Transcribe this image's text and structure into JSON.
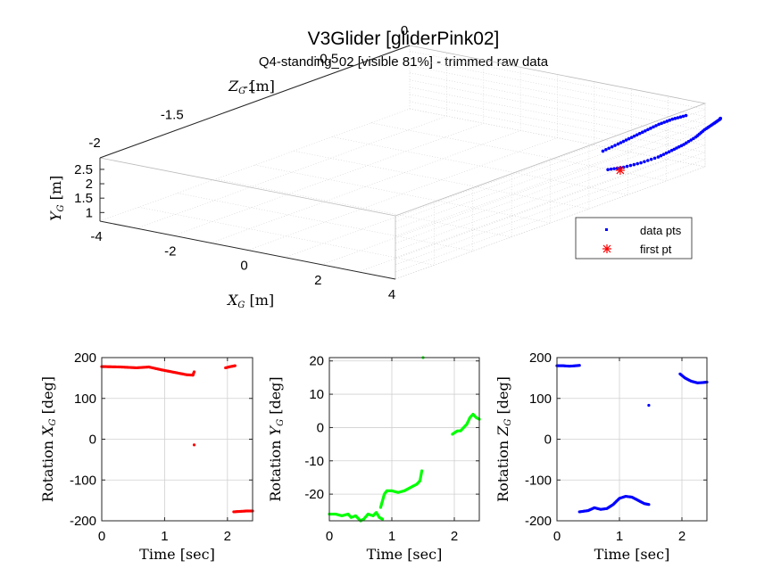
{
  "figure": {
    "title": "V3Glider [gliderPink02]",
    "subtitle": "Q4-standing_02 [visible 81%] - trimmed raw data"
  },
  "colors": {
    "red": "#ff0000",
    "green": "#00ff00",
    "blue": "#0000ff",
    "axis": "#262626",
    "grid": "#d0d0d0"
  },
  "chart_data": [
    {
      "type": "scatter",
      "projection": "3d",
      "labels": {
        "x": "X",
        "x_sub": "G",
        "x_unit": "[m]",
        "y": "Y",
        "y_sub": "G",
        "y_unit": "[m]",
        "z": "Z",
        "z_sub": "G",
        "z_unit": "[m]"
      },
      "xlim": [
        -4,
        4
      ],
      "ylim": [
        0.7,
        2.9
      ],
      "zlim": [
        -2,
        0
      ],
      "xticks": [
        -4,
        -2,
        0,
        2,
        4
      ],
      "yticks": [
        1,
        1.5,
        2,
        2.5
      ],
      "zticks": [
        -2,
        -1.5,
        -1,
        -0.5,
        0
      ],
      "grid": true,
      "legend": {
        "position": "right",
        "entries": [
          "data pts",
          "first pt"
        ]
      },
      "series": [
        {
          "name": "data pts",
          "color": "#0000ff",
          "marker": "dot",
          "points": [
            [
              2.5,
              0.75,
              -0.27
            ],
            [
              2.8,
              0.85,
              -0.24
            ],
            [
              3.1,
              1.0,
              -0.2
            ],
            [
              3.4,
              1.2,
              -0.16
            ],
            [
              3.6,
              1.4,
              -0.12
            ],
            [
              3.8,
              1.6,
              -0.09
            ],
            [
              4.0,
              1.85,
              -0.06
            ],
            [
              4.15,
              2.1,
              -0.04
            ],
            [
              4.3,
              2.3,
              -0.02
            ],
            [
              4.4,
              2.45,
              0.0
            ],
            [
              4.5,
              2.55,
              -0.02
            ],
            [
              2.7,
              1.6,
              -0.35
            ],
            [
              2.9,
              1.8,
              -0.3
            ],
            [
              3.1,
              2.0,
              -0.26
            ],
            [
              3.3,
              2.2,
              -0.22
            ],
            [
              3.5,
              2.4,
              -0.18
            ],
            [
              3.7,
              2.55,
              -0.14
            ],
            [
              3.9,
              2.65,
              -0.1
            ]
          ]
        },
        {
          "name": "first pt",
          "color": "#ff0000",
          "marker": "asterisk",
          "points": [
            [
              2.75,
              0.75,
              -0.25
            ]
          ]
        }
      ]
    },
    {
      "type": "scatter",
      "color": "#ff0000",
      "xlabel": "Time [sec]",
      "ylabel_prefix": "Rotation",
      "ylabel_var": "X",
      "ylabel_sub": "G",
      "ylabel_unit": "[deg]",
      "xlim": [
        0,
        2.4
      ],
      "ylim": [
        -200,
        200
      ],
      "xticks": [
        0,
        1,
        2
      ],
      "yticks": [
        -200,
        -100,
        0,
        100,
        200
      ],
      "grid": true,
      "segments": [
        {
          "x": [
            0,
            0.3,
            0.55,
            0.75,
            0.95,
            1.15,
            1.35,
            1.45
          ],
          "y": [
            178,
            177,
            175,
            177,
            170,
            164,
            158,
            157
          ]
        },
        {
          "x": [
            1.45,
            1.47
          ],
          "y": [
            157,
            165
          ]
        },
        {
          "x": [
            1.47
          ],
          "y": [
            -14
          ]
        },
        {
          "x": [
            1.97,
            2.05,
            2.12
          ],
          "y": [
            175,
            178,
            180
          ]
        },
        {
          "x": [
            2.1,
            2.2,
            2.3,
            2.4
          ],
          "y": [
            -178,
            -177,
            -176,
            -176
          ]
        }
      ]
    },
    {
      "type": "scatter",
      "color": "#00ff00",
      "xlabel": "Time [sec]",
      "ylabel_prefix": "Rotation",
      "ylabel_var": "Y",
      "ylabel_sub": "G",
      "ylabel_unit": "[deg]",
      "xlim": [
        0,
        2.4
      ],
      "ylim": [
        -28,
        21
      ],
      "xticks": [
        0,
        1,
        2
      ],
      "yticks": [
        -20,
        -10,
        0,
        10,
        20
      ],
      "grid": true,
      "segments": [
        {
          "x": [
            0,
            0.1,
            0.2,
            0.3,
            0.35,
            0.42,
            0.5,
            0.55,
            0.62,
            0.7,
            0.75,
            0.8,
            0.85
          ],
          "y": [
            -26,
            -26,
            -26.5,
            -26,
            -27,
            -26.5,
            -28,
            -27.5,
            -26,
            -26.5,
            -25.5,
            -27,
            -27.5
          ]
        },
        {
          "x": [
            0.82,
            0.85,
            0.88,
            0.9,
            0.92,
            0.95,
            1.0,
            1.1,
            1.2,
            1.3,
            1.4,
            1.45,
            1.48
          ],
          "y": [
            -24,
            -22,
            -20,
            -19.5,
            -19,
            -19,
            -19,
            -19.5,
            -19,
            -18,
            -17,
            -16,
            -13
          ]
        },
        {
          "x": [
            1.5
          ],
          "y": [
            21
          ]
        },
        {
          "x": [
            1.97,
            2.05,
            2.1,
            2.2,
            2.25,
            2.3,
            2.35,
            2.4
          ],
          "y": [
            -2,
            -1,
            -1,
            1,
            3,
            4,
            3,
            2.5
          ]
        }
      ]
    },
    {
      "type": "scatter",
      "color": "#0000ff",
      "xlabel": "Time [sec]",
      "ylabel_prefix": "Rotation",
      "ylabel_var": "Z",
      "ylabel_sub": "G",
      "ylabel_unit": "[deg]",
      "xlim": [
        0,
        2.4
      ],
      "ylim": [
        -200,
        200
      ],
      "xticks": [
        0,
        1,
        2
      ],
      "yticks": [
        -200,
        -100,
        0,
        100,
        200
      ],
      "grid": true,
      "segments": [
        {
          "x": [
            0,
            0.1,
            0.2,
            0.3,
            0.36
          ],
          "y": [
            180,
            180,
            179,
            180,
            181
          ]
        },
        {
          "x": [
            0.36,
            0.5,
            0.6,
            0.7,
            0.8,
            0.9,
            1.0,
            1.1,
            1.2,
            1.3,
            1.4,
            1.47
          ],
          "y": [
            -178,
            -175,
            -168,
            -172,
            -170,
            -160,
            -145,
            -140,
            -142,
            -150,
            -158,
            -160
          ]
        },
        {
          "x": [
            1.47
          ],
          "y": [
            83
          ]
        },
        {
          "x": [
            1.97,
            2.05,
            2.15,
            2.25,
            2.35,
            2.4
          ],
          "y": [
            160,
            150,
            142,
            138,
            139,
            140
          ]
        }
      ]
    }
  ]
}
